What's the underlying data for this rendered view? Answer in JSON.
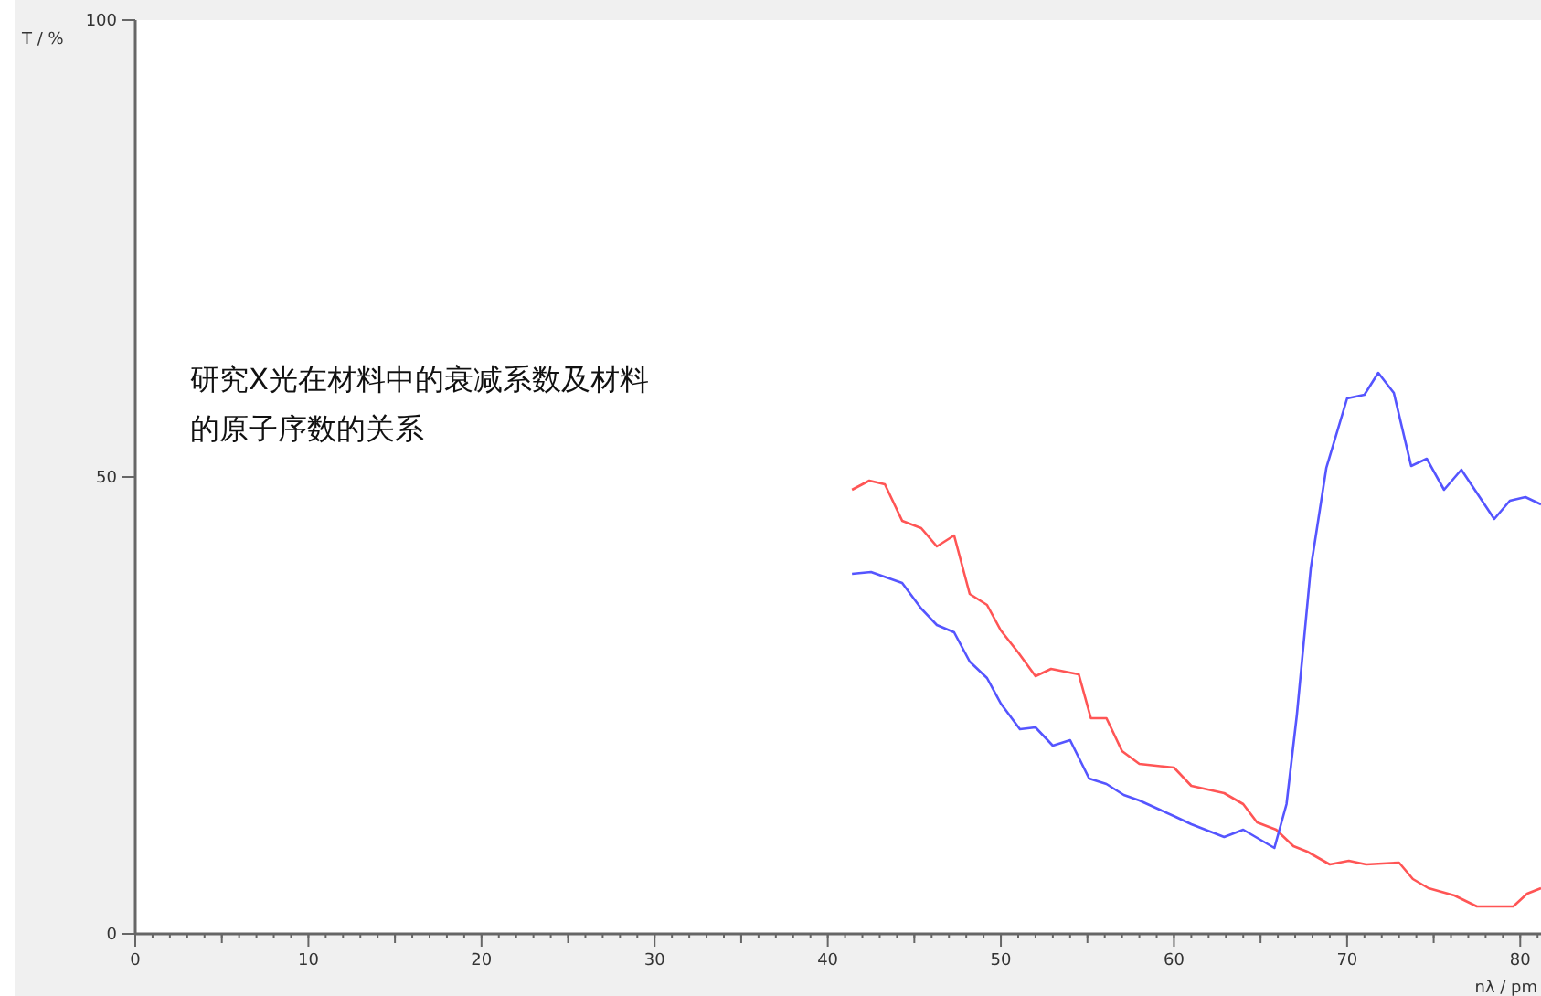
{
  "chart_data": {
    "type": "line",
    "xlabel": "nλ / pm",
    "ylabel": "T / %",
    "annotations": [
      "研究X光在材料中的衰减系数及材料的原子序数的关系"
    ],
    "xlim": [
      0,
      81.2
    ],
    "ylim": [
      0,
      100
    ],
    "xticks": [
      0,
      {
        "value": 5,
        "label": null
      },
      10,
      {
        "value": 15,
        "label": null
      },
      20,
      {
        "value": 25,
        "label": null
      },
      30,
      {
        "value": 35,
        "label": null
      },
      40,
      {
        "value": 45,
        "label": null
      },
      50,
      {
        "value": 55,
        "label": null
      },
      60,
      {
        "value": 65,
        "label": null
      },
      70,
      {
        "value": 75,
        "label": null
      },
      80
    ],
    "yticks": [
      0,
      50,
      100
    ],
    "grid": false,
    "series": [
      {
        "color": "#ff5555",
        "x": [
          41.4,
          42.4,
          43.3,
          44.3,
          45.4,
          46.3,
          47.3,
          48.2,
          49.2,
          50,
          51,
          52,
          52.9,
          54.5,
          55.2,
          56.1,
          57,
          58,
          60,
          61,
          62.9,
          64,
          64.8,
          65.9,
          66.9,
          67.7,
          69,
          70.1,
          71.1,
          73,
          73.8,
          74.7,
          76.2,
          77.5,
          79.6,
          80.4,
          81.2
        ],
        "values": [
          48.6,
          49.6,
          49.2,
          45.2,
          44.4,
          42.4,
          43.6,
          37.2,
          36,
          33.2,
          30.8,
          28.2,
          29,
          28.4,
          23.6,
          23.6,
          20,
          18.6,
          18.2,
          16.2,
          15.4,
          14.2,
          12.2,
          11.4,
          9.6,
          9,
          7.6,
          8,
          7.6,
          7.8,
          6,
          5,
          4.2,
          3,
          3,
          4.4,
          5
        ]
      },
      {
        "color": "#5555ff",
        "x": [
          41.4,
          42.5,
          43.4,
          44.3,
          45.4,
          46.3,
          47.3,
          48.2,
          49.2,
          50,
          51.1,
          52,
          53,
          54,
          55.1,
          56.1,
          57.1,
          58,
          60.1,
          61,
          62.9,
          64,
          65.8,
          66.5,
          67.1,
          67.9,
          68.8,
          70,
          71,
          71.8,
          72.7,
          73.7,
          74.6,
          75.6,
          76.6,
          78.5,
          79.4,
          80.3,
          81.2
        ],
        "values": [
          39.4,
          39.6,
          39,
          38.4,
          35.6,
          33.8,
          33,
          29.8,
          28,
          25.2,
          22.4,
          22.6,
          20.6,
          21.2,
          17,
          16.4,
          15.2,
          14.6,
          12.8,
          12,
          10.6,
          11.4,
          9.4,
          14.2,
          24,
          40,
          51,
          58.6,
          59,
          61.4,
          59.2,
          51.2,
          52,
          48.6,
          50.8,
          45.4,
          47.4,
          47.8,
          47
        ]
      }
    ]
  }
}
